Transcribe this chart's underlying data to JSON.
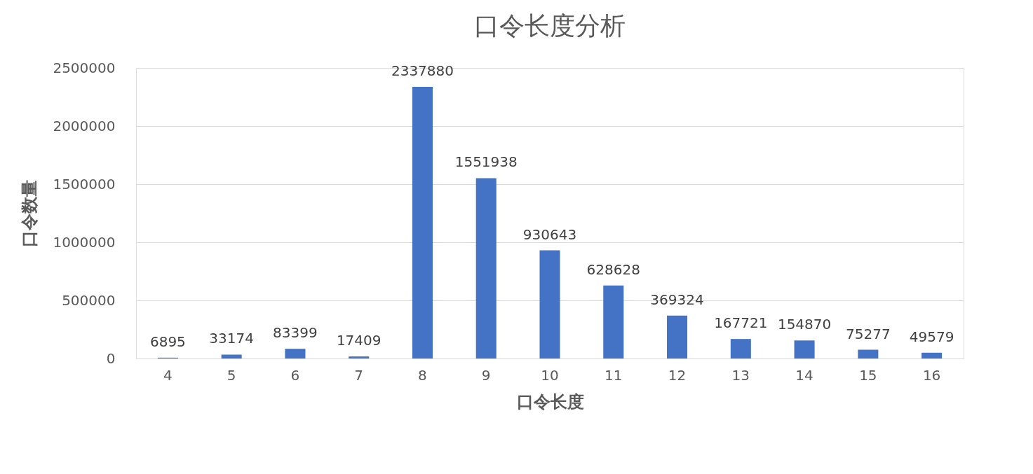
{
  "chart_data": {
    "type": "bar",
    "title": "口令长度分析",
    "xlabel": "口令长度",
    "ylabel": "口令数量",
    "categories": [
      "4",
      "5",
      "6",
      "7",
      "8",
      "9",
      "10",
      "11",
      "12",
      "13",
      "14",
      "15",
      "16"
    ],
    "values": [
      6895,
      33174,
      83399,
      17409,
      2337880,
      1551938,
      930643,
      628628,
      369324,
      167721,
      154870,
      75277,
      49579
    ],
    "color": "#4472c4",
    "ylim": [
      0,
      2500000
    ],
    "yticks": [
      0,
      500000,
      1000000,
      1500000,
      2000000,
      2500000
    ],
    "grid": "y",
    "data_labels": true
  }
}
